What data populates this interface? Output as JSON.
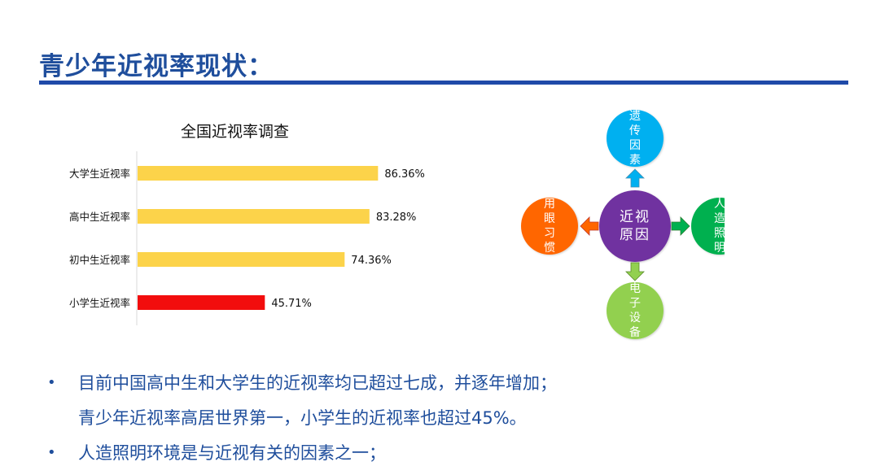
{
  "slide": {
    "title": "青少年近视率现状："
  },
  "chart_data": {
    "type": "bar",
    "orientation": "horizontal",
    "title": "全国近视率调查",
    "categories": [
      "大学生近视率",
      "高中生近视率",
      "初中生近视率",
      "小学生近视率"
    ],
    "values": [
      86.36,
      83.28,
      74.36,
      45.71
    ],
    "value_labels": [
      "86.36%",
      "83.28%",
      "74.36%",
      "45.71%"
    ],
    "bar_colors": [
      "#fcd34a",
      "#fcd34a",
      "#fcd34a",
      "#f20d0d"
    ],
    "xlim": [
      0,
      100
    ],
    "grid": false,
    "legend": "none"
  },
  "diagram": {
    "center": {
      "label_lines": [
        "近视",
        "原因"
      ],
      "color": "#7030a0"
    },
    "nodes": {
      "top": {
        "chars": [
          "遗",
          "传",
          "因",
          "素"
        ],
        "color": "#00b0f0",
        "arrow_color": "#00b0f0"
      },
      "right": {
        "chars": [
          "人",
          "造",
          "照",
          "明"
        ],
        "color": "#00b050",
        "arrow_color": "#00b050"
      },
      "bottom": {
        "chars": [
          "电",
          "子",
          "设",
          "备"
        ],
        "color": "#92d050",
        "arrow_color": "#92d050"
      },
      "left": {
        "chars": [
          "用",
          "眼",
          "习",
          "惯"
        ],
        "color": "#ff6600",
        "arrow_color": "#ff6600"
      }
    }
  },
  "bullets": {
    "dot": "•",
    "items": [
      "目前中国高中生和大学生的近视率均已超过七成，并逐年增加；",
      "青少年近视率高居世界第一，小学生的近视率也超过45%。",
      "人造照明环境是与近视有关的因素之一；"
    ]
  }
}
